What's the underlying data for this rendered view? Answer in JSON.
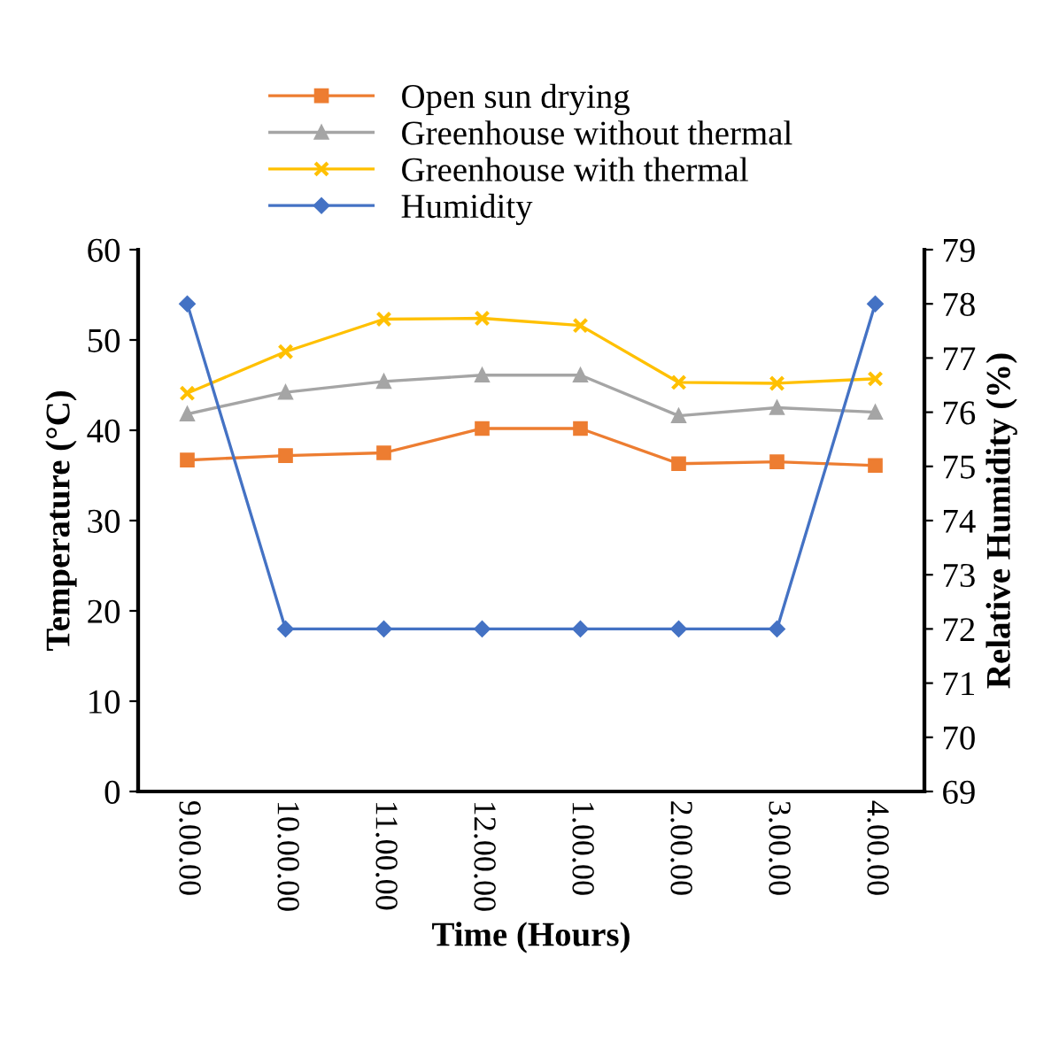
{
  "chart_data": {
    "type": "line",
    "xlabel": "Time (Hours)",
    "ylabel": "Temperature (°C)",
    "y2label": "Relative Humidity (%)",
    "categories": [
      "9.00.00",
      "10.00.00",
      "11.00.00",
      "12.00.00",
      "1.00.00",
      "2.00.00",
      "3.00.00",
      "4.00.00"
    ],
    "series": [
      {
        "name": "Open sun drying",
        "color": "#ed7d31",
        "marker": "square",
        "values": [
          36.7,
          37.2,
          37.5,
          40.2,
          40.2,
          36.3,
          36.5,
          36.1
        ]
      },
      {
        "name": "Greenhouse without thermal",
        "color": "#a5a5a5",
        "marker": "triangle",
        "values": [
          41.8,
          44.2,
          45.4,
          46.1,
          46.1,
          41.6,
          42.5,
          42.0
        ]
      },
      {
        "name": "Greenhouse with thermal",
        "color": "#ffc000",
        "marker": "cross",
        "values": [
          44.1,
          48.7,
          52.3,
          52.4,
          51.6,
          45.3,
          45.2,
          45.7
        ]
      },
      {
        "name": "Humidity",
        "color": "#4472c4",
        "marker": "diamond",
        "axis": "y2",
        "values": [
          78,
          72,
          72,
          72,
          72,
          72,
          72,
          78
        ]
      }
    ],
    "ylim": [
      0,
      60
    ],
    "yticks": [
      0,
      10,
      20,
      30,
      40,
      50,
      60
    ],
    "y2lim": [
      69,
      79
    ],
    "y2ticks": [
      69,
      70,
      71,
      72,
      73,
      74,
      75,
      76,
      77,
      78,
      79
    ],
    "grid": false,
    "legend": "top",
    "line_style": "solid"
  }
}
